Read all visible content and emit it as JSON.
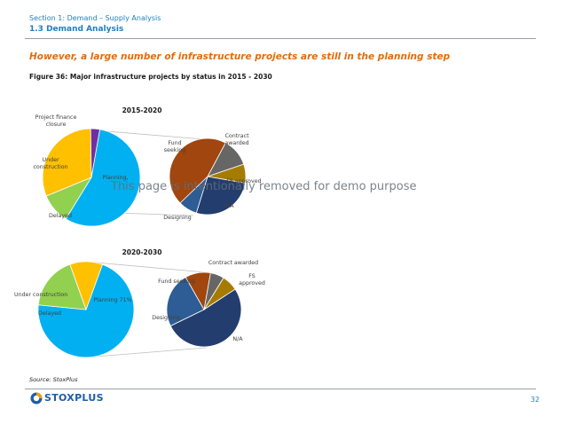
{
  "header": {
    "section": "Section 1: Demand – Supply Analysis",
    "subsection": "1.3 Demand Analysis"
  },
  "headline": "However, a large number of infrastructure projects are still in the planning step",
  "figure_caption": "Figure 36: Major infrastructure projects by status in 2015 - 2030",
  "watermark": "This page is intentionally removed for demo purpose",
  "source": "Source: StoxPlus",
  "logo_text": "STOXPLUS",
  "page_number": "32",
  "colors": {
    "planning": "#00b0f0",
    "delayed": "#92d050",
    "under_construction": "#ffc000",
    "project_finance": "#7030a0",
    "fund_seeking": "#a0460e",
    "contract_awarded": "#666666",
    "fs_approved": "#a67c00",
    "na": "#233d6e",
    "designing": "#2e5c94",
    "accent": "#e46c0a",
    "brand": "#1f7fc1"
  },
  "chart_data": [
    {
      "type": "pie",
      "title": "2015-2020",
      "main_pie": {
        "slices": [
          {
            "label": "Planning,",
            "value": 56,
            "color": "#00b0f0"
          },
          {
            "label": "Delayed",
            "value": 10,
            "color": "#92d050"
          },
          {
            "label": "Under construction",
            "value": 31,
            "color": "#ffc000"
          },
          {
            "label": "Project finance closure",
            "value": 3,
            "color": "#7030a0"
          }
        ]
      },
      "breakdown_pie": {
        "parent": "Planning,",
        "slices": [
          {
            "label": "Contract awarded",
            "value": 12,
            "color": "#666666"
          },
          {
            "label": "FS approved",
            "value": 8,
            "color": "#a67c00"
          },
          {
            "label": "N/A",
            "value": 27,
            "color": "#233d6e"
          },
          {
            "label": "Designing",
            "value": 8,
            "color": "#2e5c94"
          },
          {
            "label": "Fund seeking",
            "value": 45,
            "color": "#a0460e"
          }
        ]
      }
    },
    {
      "type": "pie",
      "title": "2020-2030",
      "main_pie": {
        "slices": [
          {
            "label": "Planning 71%",
            "value": 71,
            "color": "#00b0f0"
          },
          {
            "label": "Delayed",
            "value": 18,
            "color": "#92d050"
          },
          {
            "label": "Under construction",
            "value": 11,
            "color": "#ffc000"
          }
        ]
      },
      "breakdown_pie": {
        "parent": "Planning 71%",
        "slices": [
          {
            "label": "Contract awarded",
            "value": 6,
            "color": "#666666"
          },
          {
            "label": "FS approved",
            "value": 7,
            "color": "#a67c00"
          },
          {
            "label": "N/A",
            "value": 52,
            "color": "#233d6e"
          },
          {
            "label": "Designing",
            "value": 24,
            "color": "#2e5c94"
          },
          {
            "label": "Fund seeking",
            "value": 11,
            "color": "#a0460e"
          }
        ]
      }
    }
  ]
}
